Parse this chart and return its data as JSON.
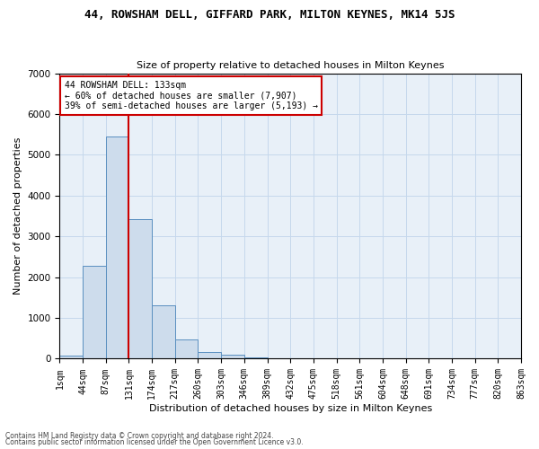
{
  "title": "44, ROWSHAM DELL, GIFFARD PARK, MILTON KEYNES, MK14 5JS",
  "subtitle": "Size of property relative to detached houses in Milton Keynes",
  "xlabel": "Distribution of detached houses by size in Milton Keynes",
  "ylabel": "Number of detached properties",
  "footnote1": "Contains HM Land Registry data © Crown copyright and database right 2024.",
  "footnote2": "Contains public sector information licensed under the Open Government Licence v3.0.",
  "bar_values": [
    75,
    2280,
    5450,
    3420,
    1300,
    480,
    160,
    90,
    30,
    10,
    5,
    3,
    2,
    1,
    1,
    0,
    0,
    0,
    0,
    0
  ],
  "bin_labels": [
    "1sqm",
    "44sqm",
    "87sqm",
    "131sqm",
    "174sqm",
    "217sqm",
    "260sqm",
    "303sqm",
    "346sqm",
    "389sqm",
    "432sqm",
    "475sqm",
    "518sqm",
    "561sqm",
    "604sqm",
    "648sqm",
    "691sqm",
    "734sqm",
    "777sqm",
    "820sqm",
    "863sqm"
  ],
  "bar_color": "#cddcec",
  "bar_edge_color": "#5a8fc0",
  "grid_color": "#c5d8ec",
  "background_color": "#e8f0f8",
  "vline_color": "#cc0000",
  "annotation_text": "44 ROWSHAM DELL: 133sqm\n← 60% of detached houses are smaller (7,907)\n39% of semi-detached houses are larger (5,193) →",
  "annotation_box_color": "#cc0000",
  "ylim": [
    0,
    7000
  ],
  "yticks": [
    0,
    1000,
    2000,
    3000,
    4000,
    5000,
    6000,
    7000
  ],
  "bin_edges": [
    1,
    44,
    87,
    131,
    174,
    217,
    260,
    303,
    346,
    389,
    432,
    475,
    518,
    561,
    604,
    648,
    691,
    734,
    777,
    820,
    863
  ],
  "vline_bin_index": 3,
  "title_fontsize": 9,
  "subtitle_fontsize": 8,
  "ylabel_fontsize": 8,
  "xlabel_fontsize": 8,
  "tick_fontsize": 7,
  "annotation_fontsize": 7,
  "footnote_fontsize": 5.5
}
